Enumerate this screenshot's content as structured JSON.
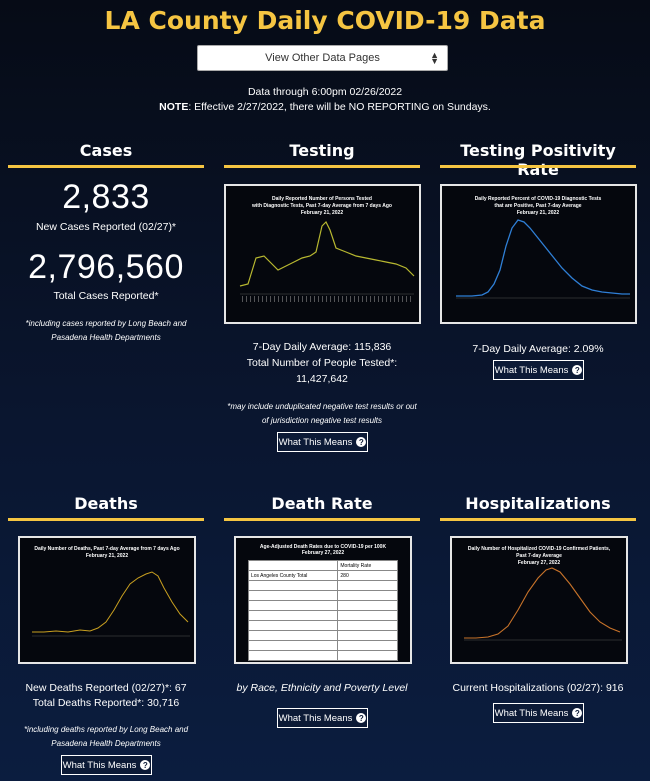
{
  "header": {
    "title": "LA County Daily COVID-19 Data",
    "select_label": "View Other Data Pages",
    "data_through": "Data through 6:00pm 02/26/2022",
    "note_label": "NOTE",
    "note_text": ": Effective 2/27/2022, there will be NO REPORTING on Sundays."
  },
  "cases": {
    "title": "Cases",
    "new_value": "2,833",
    "new_label": "New Cases Reported (02/27)*",
    "total_value": "2,796,560",
    "total_label": "Total Cases Reported*",
    "footnote": "*including cases reported by Long Beach and Pasadena Health Departments"
  },
  "testing": {
    "title": "Testing",
    "chart_title_1": "Daily Reported Number of Persons Tested",
    "chart_title_2": "with Diagnostic Tests, Past 7-day Average from 7 days Ago",
    "chart_title_3": "February 21, 2022",
    "avg": "7-Day Daily Average: 115,836",
    "total_label": "Total Number of People Tested*:",
    "total_value": "11,427,642",
    "footnote": "*may include unduplicated negative test results or out of jurisdiction negative test results",
    "button": "What This Means"
  },
  "positivity": {
    "title": "Testing Positivity Rate",
    "chart_title_1": "Daily Reported Percent of COVID-19 Diagnostic Tests",
    "chart_title_2": "that are Positive, Past 7-day Average",
    "chart_title_3": "February 21, 2022",
    "avg": "7-Day Daily Average: 2.09%",
    "button": "What This Means"
  },
  "deaths": {
    "title": "Deaths",
    "chart_title_1": "Daily Number of Deaths, Past 7-day Average from 7 days Ago",
    "chart_title_2": "February 21, 2022",
    "new_label": "New Deaths Reported (02/27)*: 67",
    "total_label": "Total Deaths Reported*: 30,716",
    "footnote": "*including deaths reported by Long Beach and Pasadena Health Departments",
    "button": "What This Means"
  },
  "death_rate": {
    "title": "Death Rate",
    "chart_title_1": "Age-Adjusted Death Rates due to COVID-19 per 100K",
    "chart_title_2": "February 27, 2022",
    "table_header": "Mortality Rate",
    "table_total_label": "Los Angeles County Total",
    "table_total_value": "280",
    "subtitle": "by Race, Ethnicity and Poverty Level",
    "button": "What This Means"
  },
  "hospitalizations": {
    "title": "Hospitalizations",
    "chart_title_1": "Daily Number of Hospitalized COVID-19 Confirmed Patients,",
    "chart_title_2": "Past 7-day Average",
    "chart_title_3": "February 27, 2022",
    "current": "Current Hospitalizations (02/27): 916",
    "button": "What This Means"
  },
  "colors": {
    "accent": "#f5c542",
    "testing_line": "#b8b830",
    "positivity_line": "#2f7fd6",
    "deaths_line": "#c9a020",
    "hospital_line": "#c8732a"
  }
}
